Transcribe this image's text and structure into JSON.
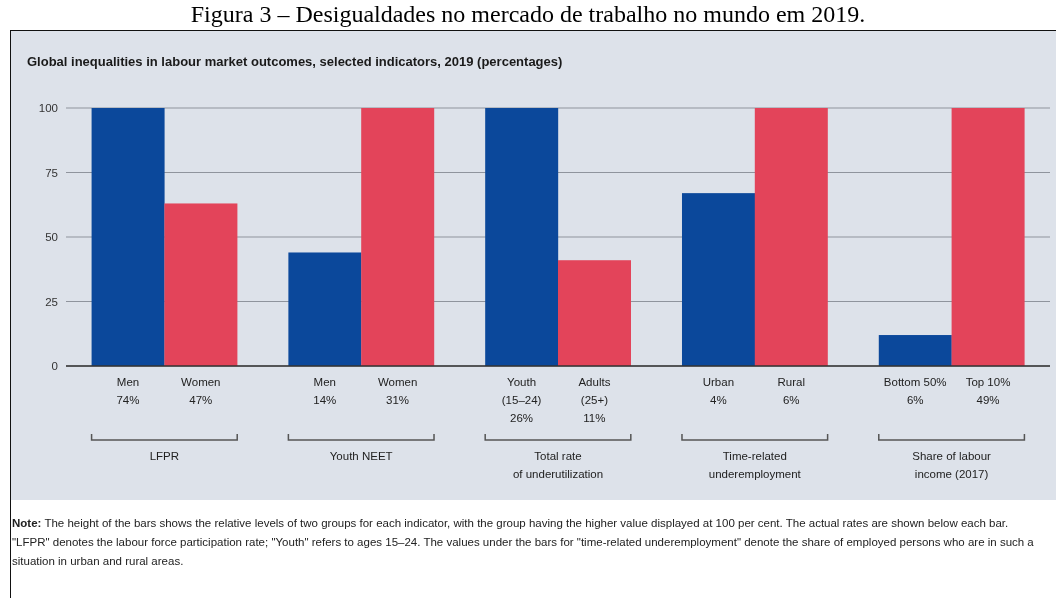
{
  "chart_data": {
    "type": "bar",
    "title": "Figura 3 – Desigualdades no mercado de trabalho no mundo em 2019.",
    "subtitle": "Global inequalities in labour market outcomes, selected indicators, 2019 (percentages)",
    "categories": [
      "Men\n74%",
      "Women\n47%",
      "Men\n14%",
      "Women\n31%",
      "Youth\n(15–24)\n26%",
      "Adults\n(25+)\n11%",
      "Urban\n4%",
      "Rural\n6%",
      "Bottom 50%\n6%",
      "Top 10%\n49%"
    ],
    "values": [
      100,
      63,
      44,
      100,
      100,
      41,
      67,
      100,
      12,
      100
    ],
    "colors": [
      "#0b489b",
      "#e3445a",
      "#0b489b",
      "#e3445a",
      "#0b489b",
      "#e3445a",
      "#0b489b",
      "#e3445a",
      "#0b489b",
      "#e3445a"
    ],
    "ylim": [
      0,
      100
    ],
    "yticks": [
      0,
      25,
      50,
      75,
      100
    ],
    "grid": "y",
    "annotations": [
      "LFPR",
      "Youth NEET",
      "Total rate\nof underutilization",
      "Time-related\nunderemployment",
      "Share of labour\nincome (2017)",
      "Note: The height of the bars shows the relative levels of two groups for each indicator, with the group having the higher value displayed at 100 per cent. The actual rates are shown below each bar. \"LFPR\" denotes the labour force participation rate; \"Youth\" refers to ages 15–24. The values under the bars for \"time-related underemployment\" denote the share of employed persons who are in such a situation in urban and rural areas."
    ]
  }
}
